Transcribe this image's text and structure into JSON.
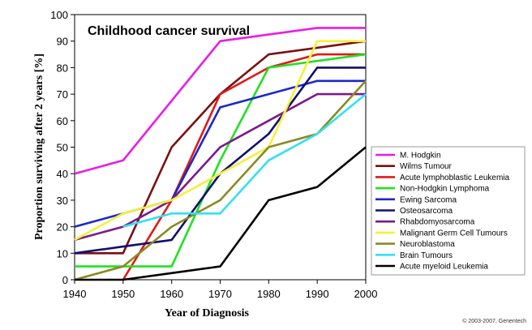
{
  "chart_data": {
    "type": "line",
    "title": "Childhood cancer survival",
    "xlabel": "Year of Diagnosis",
    "ylabel": "Proportion surviving after 2 years [%]",
    "x": [
      1940,
      1950,
      1960,
      1970,
      1980,
      1990,
      2000
    ],
    "xlim": [
      1940,
      2000
    ],
    "ylim": [
      0,
      100
    ],
    "xticks": [
      "1940",
      "1950",
      "1960",
      "1970",
      "1980",
      "1990",
      "2000"
    ],
    "yticks": [
      "0",
      "10",
      "20",
      "30",
      "40",
      "50",
      "60",
      "70",
      "80",
      "90",
      "100"
    ],
    "legend_position": "right",
    "grid": false,
    "series": [
      {
        "name": "M. Hodgkin",
        "color": "#e81ce8",
        "points": [
          [
            1940,
            40
          ],
          [
            1950,
            45
          ],
          [
            1970,
            90
          ],
          [
            1990,
            95
          ],
          [
            2000,
            95
          ]
        ]
      },
      {
        "name": "Wilms Tumour",
        "color": "#7a1010",
        "points": [
          [
            1940,
            10
          ],
          [
            1950,
            10
          ],
          [
            1960,
            50
          ],
          [
            1970,
            70
          ],
          [
            1980,
            85
          ],
          [
            1990,
            87.5
          ],
          [
            2000,
            90
          ]
        ]
      },
      {
        "name": "Acute lymphoblastic Leukemia",
        "color": "#e01818",
        "points": [
          [
            1950,
            0
          ],
          [
            1960,
            30
          ],
          [
            1970,
            70
          ],
          [
            1980,
            80
          ],
          [
            1990,
            85
          ],
          [
            2000,
            85
          ]
        ]
      },
      {
        "name": "Non-Hodgkin Lymphoma",
        "color": "#22e022",
        "points": [
          [
            1940,
            5
          ],
          [
            1950,
            5
          ],
          [
            1960,
            5
          ],
          [
            1970,
            45
          ],
          [
            1980,
            80
          ],
          [
            1990,
            82.5
          ],
          [
            2000,
            85
          ]
        ]
      },
      {
        "name": "Ewing Sarcoma",
        "color": "#1a28c8",
        "points": [
          [
            1940,
            20
          ],
          [
            1950,
            25
          ],
          [
            1960,
            30
          ],
          [
            1970,
            65
          ],
          [
            1980,
            70
          ],
          [
            1990,
            75
          ],
          [
            2000,
            75
          ]
        ]
      },
      {
        "name": "Osteosarcoma",
        "color": "#10106e",
        "points": [
          [
            1940,
            10
          ],
          [
            1950,
            12.5
          ],
          [
            1960,
            15
          ],
          [
            1970,
            40
          ],
          [
            1980,
            55
          ],
          [
            1990,
            80
          ],
          [
            2000,
            80
          ]
        ]
      },
      {
        "name": "Rhabdomyosarcoma",
        "color": "#7a1a8a",
        "points": [
          [
            1940,
            15
          ],
          [
            1950,
            20
          ],
          [
            1960,
            30
          ],
          [
            1970,
            50
          ],
          [
            1980,
            60
          ],
          [
            1990,
            70
          ],
          [
            2000,
            70
          ]
        ]
      },
      {
        "name": "Malignant Germ Cell Tumours",
        "color": "#f5f03a",
        "points": [
          [
            1940,
            15
          ],
          [
            1950,
            25
          ],
          [
            1960,
            30
          ],
          [
            1970,
            40
          ],
          [
            1980,
            50
          ],
          [
            1990,
            90
          ],
          [
            2000,
            90
          ]
        ]
      },
      {
        "name": "Neuroblastoma",
        "color": "#8a8a22",
        "points": [
          [
            1940,
            0
          ],
          [
            1950,
            5
          ],
          [
            1960,
            20
          ],
          [
            1970,
            30
          ],
          [
            1980,
            50
          ],
          [
            1990,
            55
          ],
          [
            2000,
            75
          ]
        ]
      },
      {
        "name": "Brain Tumours",
        "color": "#33e0f0",
        "points": [
          [
            1950,
            20
          ],
          [
            1960,
            25
          ],
          [
            1970,
            25
          ],
          [
            1980,
            45
          ],
          [
            1990,
            55
          ],
          [
            2000,
            70
          ]
        ]
      },
      {
        "name": "Acute myeloid Leukemia",
        "color": "#000000",
        "points": [
          [
            1940,
            0
          ],
          [
            1950,
            0
          ],
          [
            1960,
            2.5
          ],
          [
            1970,
            5
          ],
          [
            1980,
            30
          ],
          [
            1990,
            35
          ],
          [
            2000,
            50
          ]
        ]
      }
    ],
    "copyright": "© 2003-2007, Genentech"
  }
}
